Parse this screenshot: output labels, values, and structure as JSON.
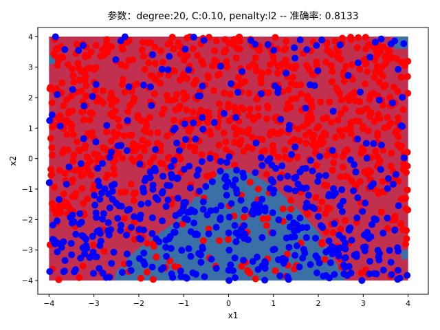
{
  "chart_data": {
    "type": "scatter",
    "title": "参数：degree:20, C:0.10, penalty:l2 -- 准确率: 0.8133",
    "xlabel": "x1",
    "ylabel": "x2",
    "xlim": [
      -4.25,
      4.45
    ],
    "ylim": [
      -4.45,
      4.3
    ],
    "xticks": [
      -4,
      -3,
      -2,
      -1,
      0,
      1,
      2,
      3,
      4
    ],
    "yticks": [
      -4,
      -3,
      -2,
      -1,
      0,
      1,
      2,
      3,
      4
    ],
    "grid": false,
    "legend": "none",
    "decision_region": {
      "x_range": [
        -4,
        4
      ],
      "y_range": [
        -4,
        4
      ],
      "class_0_color": "#c2304f",
      "class_1_color": "#3b70a6",
      "class_1_boundary": [
        [
          -2.55,
          -4.0
        ],
        [
          -2.5,
          -3.7
        ],
        [
          -2.2,
          -3.2
        ],
        [
          -1.8,
          -2.7
        ],
        [
          -1.2,
          -2.1
        ],
        [
          -0.7,
          -1.2
        ],
        [
          -0.3,
          -0.45
        ],
        [
          0.1,
          -0.3
        ],
        [
          0.5,
          -0.5
        ],
        [
          1.0,
          -0.9
        ],
        [
          1.5,
          -1.6
        ],
        [
          2.0,
          -2.4
        ],
        [
          2.3,
          -3.2
        ],
        [
          2.55,
          -3.8
        ],
        [
          2.6,
          -4.0
        ]
      ],
      "class_1_corner_patches": [
        {
          "x": [
            3.7,
            4.0
          ],
          "y": [
            3.6,
            4.0
          ]
        },
        {
          "x": [
            -4.0,
            -3.8
          ],
          "y": [
            3.1,
            3.4
          ]
        },
        {
          "x": [
            3.85,
            4.0
          ],
          "y": [
            -3.0,
            -3.3
          ]
        }
      ]
    },
    "series": [
      {
        "name": "",
        "color": "#ff0000",
        "label": 0,
        "count": 950
      },
      {
        "name": "",
        "color": "#0000ff",
        "label": 1,
        "count": 550
      }
    ],
    "sampling": {
      "x_range": [
        -4,
        4
      ],
      "y_range": [
        -4,
        4
      ],
      "rule": "label = 1 if (x1^2 + (x2 + 4)^2 < 17) else 0, with about 18% random flips"
    }
  }
}
